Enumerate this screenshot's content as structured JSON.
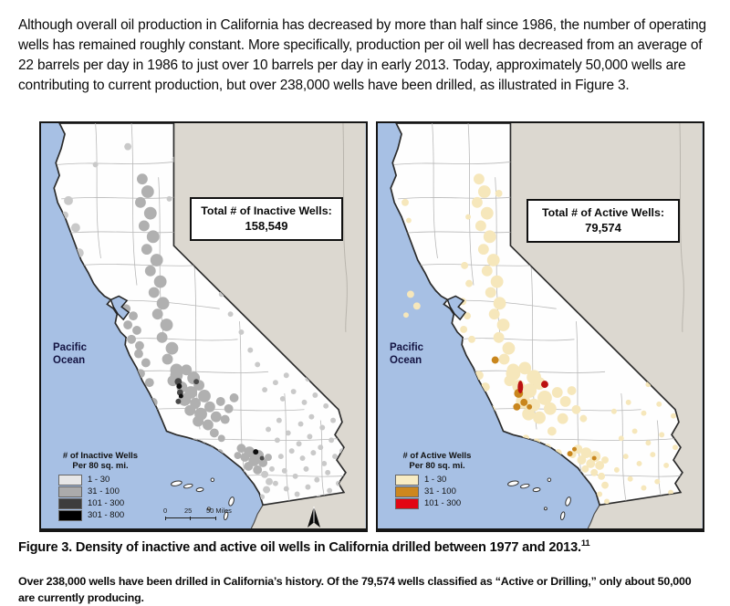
{
  "intro_paragraph": "Although overall oil production in California has decreased by more than half since 1986, the number of operating wells has remained roughly constant. More specifically, production per oil well has decreased from an average of 22 barrels per day in 1986 to just over 10 barrels per day in early 2013. Today, approximately 50,000 wells are contributing to current production, but over 238,000 wells have been drilled, as illustrated in Figure 3.",
  "figure": {
    "caption": "Figure 3. Density of inactive and active oil wells in California drilled between 1977 and 2013.",
    "caption_superscript": "11",
    "subcaption": "Over 238,000 wells have been drilled in California’s history. Of the 79,574 wells classified as “Active or Drilling,” only about 50,000 are currently producing.",
    "maps": [
      {
        "name": "inactive-wells-map",
        "total_box": {
          "title": "Total # of Inactive Wells:",
          "value": "158,549"
        },
        "ocean_label": {
          "line1": "Pacific",
          "line2": "Ocean"
        },
        "legend": {
          "title_line1": "# of Inactive Wells",
          "title_line2": "Per 80 sq. mi.",
          "items": [
            {
              "label": "1 - 30",
              "color": "#e7e7e7"
            },
            {
              "label": "31 - 100",
              "color": "#ababab"
            },
            {
              "label": "101 - 300",
              "color": "#3d3d3d"
            },
            {
              "label": "301 - 800",
              "color": "#000000"
            }
          ]
        },
        "scale_bar": {
          "labels": [
            "0",
            "25",
            "50 Miles"
          ]
        }
      },
      {
        "name": "active-wells-map",
        "total_box": {
          "title": "Total # of Active Wells:",
          "value": "79,574"
        },
        "ocean_label": {
          "line1": "Pacific",
          "line2": "Ocean"
        },
        "legend": {
          "title_line1": "# of Active Wells",
          "title_line2": "Per 80 sq. mi.",
          "items": [
            {
              "label": "1 - 30",
              "color": "#f8ecc3"
            },
            {
              "label": "31 - 100",
              "color": "#cd871e"
            },
            {
              "label": "101 - 300",
              "color": "#e20613"
            }
          ]
        }
      }
    ]
  },
  "colors": {
    "ocean": "#a7c0e4",
    "outside_land": "#dcd8d0",
    "california_fill": "#fefefe",
    "county_line": "#b8b8b8",
    "state_border": "#2b2b2b",
    "inactive_light": "#c9c9c9",
    "inactive_medium": "#b0b0b0",
    "inactive_dark": "#4a4a4a",
    "inactive_black": "#0c0c0c",
    "active_light": "#f6e7bb",
    "active_medium": "#c9861d",
    "active_high": "#bb1111",
    "ocean_label_text": "#131342"
  }
}
